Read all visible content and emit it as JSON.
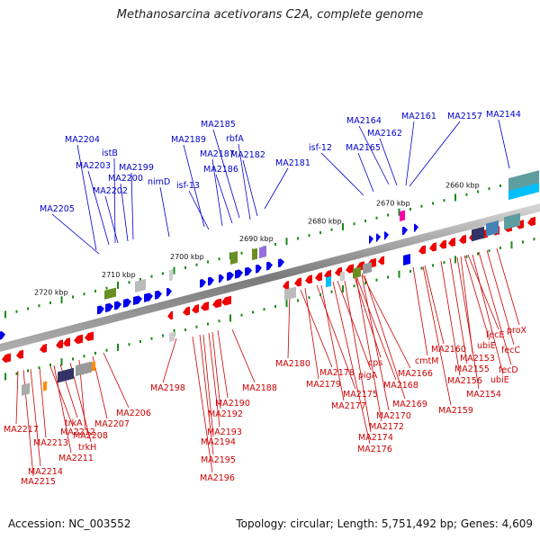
{
  "title": "Methanosarcina acetivorans C2A, complete genome",
  "footer": {
    "accession": "Accession: NC_003552",
    "stats": "Topology: circular; Length: 5,751,492 bp; Genes: 4,609"
  },
  "colors": {
    "forward_gene": "#0000ee",
    "reverse_gene": "#ee0000",
    "forward_label": "#0000cc",
    "reverse_label": "#cc0000",
    "tick": "#1a8a1a",
    "backbone": "#8c8c8c"
  },
  "scale": {
    "kbp_labels": [
      "2720 kbp",
      "2710 kbp",
      "2700 kbp",
      "2690 kbp",
      "2680 kbp",
      "2670 kbp",
      "2660 kbp"
    ]
  },
  "forward_labels": [
    "MA2204",
    "istB",
    "MA2203",
    "MA2199",
    "MA2200",
    "MA2202",
    "nimD",
    "MA2205",
    "MA2189",
    "MA2185",
    "rbfA",
    "MA2187",
    "MA2182",
    "MA2186",
    "isf-13",
    "MA2181",
    "isf-12",
    "MA2165",
    "MA2164",
    "MA2162",
    "MA2161",
    "MA2157",
    "MA2144"
  ],
  "reverse_labels": [
    "MA2198",
    "MA2180",
    "MA2178",
    "MA2179",
    "MA2175",
    "MA2177",
    "pigA",
    "cps",
    "MA2168",
    "MA2166",
    "MA2169",
    "MA2170",
    "MA2172",
    "MA2174",
    "MA2176",
    "cmtM",
    "MA2160",
    "MA2159",
    "MA2156",
    "MA2155",
    "MA2154",
    "MA2153",
    "ubiE",
    "fecE",
    "ubiE",
    "fecD",
    "fecC",
    "proX",
    "MA2188",
    "MA2190",
    "MA2192",
    "MA2193",
    "MA2194",
    "MA2195",
    "MA2196",
    "MA2206",
    "MA2207",
    "MA2208",
    "trkA",
    "trkH",
    "MA2212",
    "MA2211",
    "MA2213",
    "MA2217",
    "MA2214",
    "MA2215"
  ]
}
